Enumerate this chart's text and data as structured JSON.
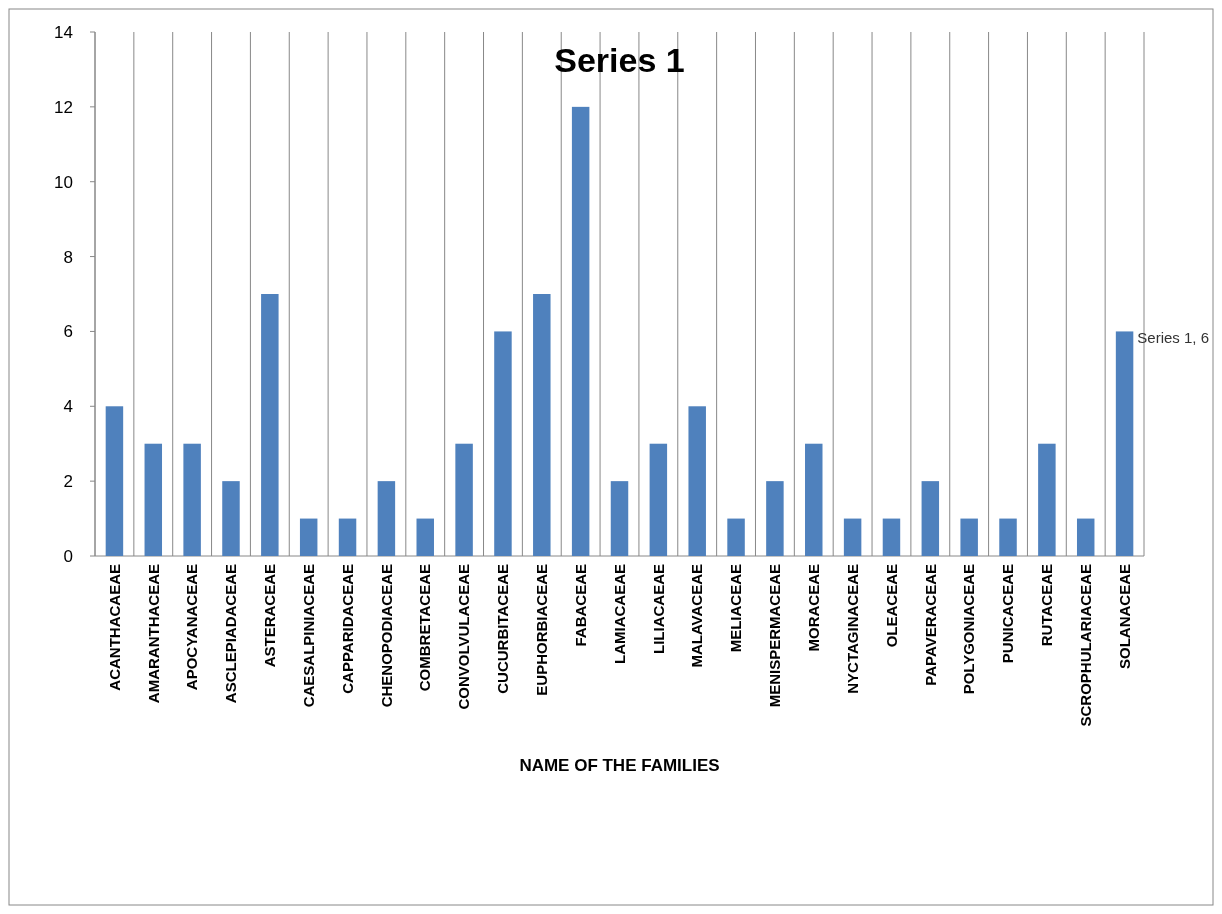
{
  "chart_data": {
    "type": "bar",
    "title": "Series 1",
    "xlabel": "NAME OF THE FAMILIES",
    "categories": [
      "ACANTHACAEAE",
      "AMARANTHACEAE",
      "APOCYANACEAE",
      "ASCLEPIADACEAE",
      "ASTERACEAE",
      "CAESALPINIACEAE",
      "CAPPARIDACEAE",
      "CHENOPODIACEAE",
      "COMBRETACEAE",
      "CONVOLVULACEAE",
      "CUCURBITACEAE",
      "EUPHORBIACEAE",
      "FABACEAE",
      "LAMIACAEAE",
      "LILIACAEAE",
      "MALAVACEAE",
      "MELIACEAE",
      "MENISPERMACEAE",
      "MORACEAE",
      "NYCTAGINACEAE",
      "OLEACEAE",
      "PAPAVERACEAE",
      "POLYGONIACEAE",
      "PUNICACEAE",
      "RUTACEAE",
      "SCROPHULARIACEAE",
      "SOLANACEAE"
    ],
    "values": [
      4,
      3,
      3,
      2,
      7,
      1,
      1,
      2,
      1,
      3,
      6,
      7,
      12,
      2,
      3,
      4,
      1,
      2,
      3,
      1,
      1,
      2,
      1,
      1,
      3,
      1,
      6
    ],
    "color": "#4f81bd",
    "ylim": [
      0,
      14
    ],
    "yticks": [
      0,
      2,
      4,
      6,
      8,
      10,
      12,
      14
    ],
    "grid": "x",
    "annotations": [
      {
        "text": "Series 1, 6",
        "x": "SOLANACEAE",
        "y": 6
      }
    ]
  }
}
